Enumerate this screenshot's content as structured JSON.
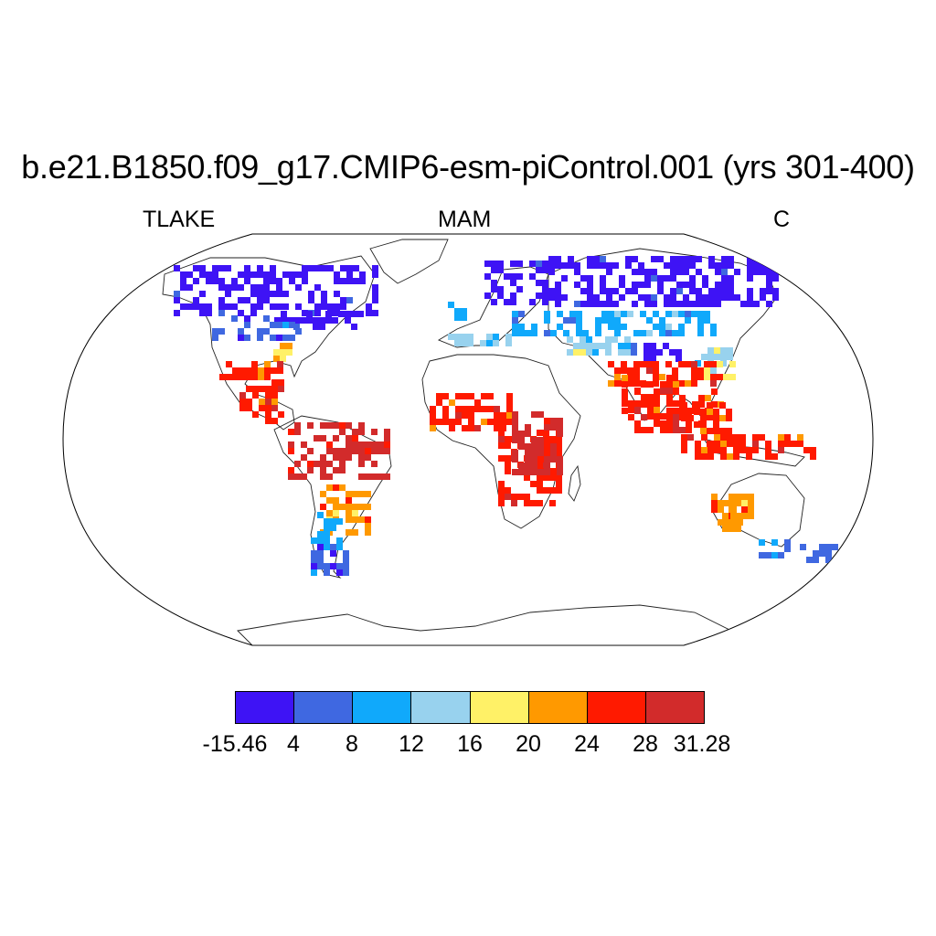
{
  "title": "b.e21.B1850.f09_g17.CMIP6-esm-piControl.001 (yrs 301-400)",
  "left_label": "TLAKE",
  "center_label": "MAM",
  "right_label": "C",
  "colorbar": {
    "colors": [
      "#3e13f5",
      "#3f68e1",
      "#10a9fb",
      "#98d2ee",
      "#fff167",
      "#ff9900",
      "#ff1a00",
      "#d22b2b"
    ],
    "labels": [
      "-15.46",
      "4",
      "8",
      "12",
      "16",
      "20",
      "24",
      "28",
      "31.28"
    ]
  },
  "map": {
    "projection": "Robinson",
    "variable": "lake temperature",
    "regions": [
      {
        "region": "Canada / Greenland coast / Alaska",
        "bin": 0
      },
      {
        "region": "Northern Eurasia / Scandinavia / Siberia",
        "bin": 0
      },
      {
        "region": "Tibetan Plateau",
        "bin": 0
      },
      {
        "region": "Northern United States",
        "bin": 1
      },
      {
        "region": "Central Asia / Mongolia",
        "bin": 2
      },
      {
        "region": "Southern Europe",
        "bin": 3
      },
      {
        "region": "Southeastern United States",
        "bin": 4
      },
      {
        "region": "China south",
        "bin": 4
      },
      {
        "region": "Mexico / Central America",
        "bin": 6
      },
      {
        "region": "Amazon Basin",
        "bin": 7
      },
      {
        "region": "Sahel / West Africa",
        "bin": 6
      },
      {
        "region": "East Africa / Great Lakes",
        "bin": 7
      },
      {
        "region": "India",
        "bin": 6
      },
      {
        "region": "Southeast Asia / Indonesia",
        "bin": 6
      },
      {
        "region": "Southern Brazil / Paraguay",
        "bin": 5
      },
      {
        "region": "Western Australia",
        "bin": 5
      },
      {
        "region": "Patagonia",
        "bin": 2
      },
      {
        "region": "New Zealand / Tasmania",
        "bin": 1
      }
    ]
  }
}
